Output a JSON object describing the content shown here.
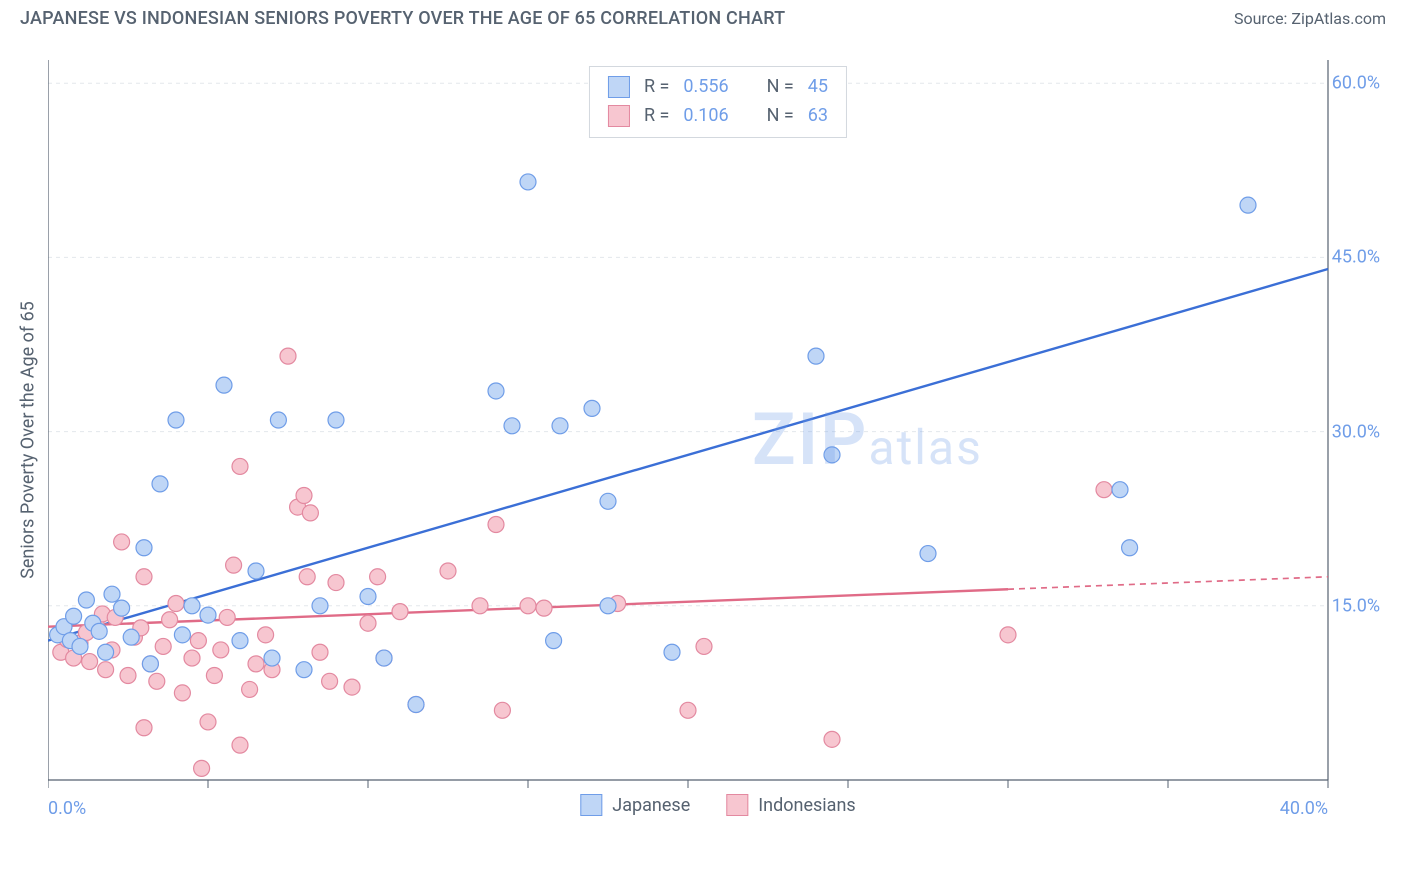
{
  "header": {
    "title": "JAPANESE VS INDONESIAN SENIORS POVERTY OVER THE AGE OF 65 CORRELATION CHART",
    "source_prefix": "Source: ",
    "source_name": "ZipAtlas.com"
  },
  "chart": {
    "type": "scatter",
    "ylabel": "Seniors Poverty Over the Age of 65",
    "background_color": "#ffffff",
    "grid_color": "#e3e7eb",
    "axis_color": "#566270",
    "text_color": "#566270",
    "tick_label_color": "#6f9de8",
    "watermark_text_a": "ZIP",
    "watermark_text_b": "atlas",
    "watermark_color": "#6f9de8",
    "xlim": [
      0,
      40
    ],
    "ylim": [
      0,
      62
    ],
    "xticks": [
      0,
      5,
      10,
      15,
      20,
      25,
      30,
      35,
      40
    ],
    "xtick_labels": {
      "0": "0.0%",
      "40": "40.0%"
    },
    "yticks": [
      15,
      30,
      45,
      60
    ],
    "ytick_labels": {
      "15": "15.0%",
      "30": "30.0%",
      "45": "45.0%",
      "60": "60.0%"
    },
    "marker_radius": 8,
    "marker_stroke_width": 1.2,
    "line_width": 2.4,
    "stats_box": {
      "rows": [
        {
          "swatch_fill": "#bfd6f6",
          "swatch_stroke": "#6f9de8",
          "r_label": "R =",
          "r_value": "0.556",
          "n_label": "N =",
          "n_value": "45"
        },
        {
          "swatch_fill": "#f7c6d0",
          "swatch_stroke": "#e389a0",
          "r_label": "R =",
          "r_value": "0.106",
          "n_label": "N =",
          "n_value": "63"
        }
      ]
    },
    "bottom_legend": [
      {
        "swatch_fill": "#bfd6f6",
        "swatch_stroke": "#6f9de8",
        "label": "Japanese"
      },
      {
        "swatch_fill": "#f7c6d0",
        "swatch_stroke": "#e389a0",
        "label": "Indonesians"
      }
    ],
    "series": [
      {
        "name": "Japanese",
        "marker_fill": "#bfd6f6",
        "marker_stroke": "#6f9de8",
        "line_color": "#3b6fd6",
        "trend": {
          "x1": 0,
          "y1": 12.0,
          "x2": 40,
          "y2": 44.0,
          "solid_until_x": 40
        },
        "points": [
          [
            0.3,
            12.5
          ],
          [
            0.5,
            13.2
          ],
          [
            0.7,
            12.0
          ],
          [
            0.8,
            14.1
          ],
          [
            1.0,
            11.5
          ],
          [
            1.2,
            15.5
          ],
          [
            1.4,
            13.5
          ],
          [
            1.6,
            12.8
          ],
          [
            1.8,
            11.0
          ],
          [
            2.0,
            16.0
          ],
          [
            2.3,
            14.8
          ],
          [
            2.6,
            12.3
          ],
          [
            3.0,
            20.0
          ],
          [
            3.2,
            10.0
          ],
          [
            3.5,
            25.5
          ],
          [
            4.0,
            31.0
          ],
          [
            4.5,
            15.0
          ],
          [
            5.0,
            14.2
          ],
          [
            5.5,
            34.0
          ],
          [
            6.0,
            12.0
          ],
          [
            6.5,
            18.0
          ],
          [
            7.0,
            10.5
          ],
          [
            7.2,
            31.0
          ],
          [
            8.0,
            9.5
          ],
          [
            8.5,
            15.0
          ],
          [
            9.0,
            31.0
          ],
          [
            10.0,
            15.8
          ],
          [
            10.5,
            10.5
          ],
          [
            11.5,
            6.5
          ],
          [
            14.0,
            33.5
          ],
          [
            14.5,
            30.5
          ],
          [
            15.0,
            51.5
          ],
          [
            15.8,
            12.0
          ],
          [
            16.0,
            30.5
          ],
          [
            17.0,
            32.0
          ],
          [
            17.5,
            24.0
          ],
          [
            19.5,
            11.0
          ],
          [
            24.0,
            36.5
          ],
          [
            24.5,
            28.0
          ],
          [
            27.5,
            19.5
          ],
          [
            33.5,
            25.0
          ],
          [
            33.8,
            20.0
          ],
          [
            37.5,
            49.5
          ],
          [
            17.5,
            15.0
          ],
          [
            4.2,
            12.5
          ]
        ]
      },
      {
        "name": "Indonesians",
        "marker_fill": "#f7c6d0",
        "marker_stroke": "#e389a0",
        "line_color": "#e06b87",
        "trend": {
          "x1": 0,
          "y1": 13.2,
          "x2": 40,
          "y2": 17.5,
          "solid_until_x": 30
        },
        "points": [
          [
            0.4,
            11.0
          ],
          [
            0.6,
            12.1
          ],
          [
            0.8,
            10.5
          ],
          [
            1.0,
            11.8
          ],
          [
            1.2,
            12.7
          ],
          [
            1.3,
            10.2
          ],
          [
            1.5,
            13.5
          ],
          [
            1.7,
            14.3
          ],
          [
            1.8,
            9.5
          ],
          [
            2.0,
            11.2
          ],
          [
            2.1,
            14.0
          ],
          [
            2.3,
            20.5
          ],
          [
            2.5,
            9.0
          ],
          [
            2.7,
            12.3
          ],
          [
            2.9,
            13.1
          ],
          [
            3.0,
            17.5
          ],
          [
            3.2,
            10.0
          ],
          [
            3.4,
            8.5
          ],
          [
            3.6,
            11.5
          ],
          [
            3.8,
            13.8
          ],
          [
            4.0,
            15.2
          ],
          [
            4.2,
            7.5
          ],
          [
            4.5,
            10.5
          ],
          [
            4.7,
            12.0
          ],
          [
            5.0,
            5.0
          ],
          [
            5.2,
            9.0
          ],
          [
            5.4,
            11.2
          ],
          [
            5.6,
            14.0
          ],
          [
            5.8,
            18.5
          ],
          [
            6.0,
            27.0
          ],
          [
            6.3,
            7.8
          ],
          [
            6.5,
            10.0
          ],
          [
            6.8,
            12.5
          ],
          [
            7.0,
            9.5
          ],
          [
            7.5,
            36.5
          ],
          [
            7.8,
            23.5
          ],
          [
            8.0,
            24.5
          ],
          [
            8.1,
            17.5
          ],
          [
            8.2,
            23.0
          ],
          [
            8.5,
            11.0
          ],
          [
            8.8,
            8.5
          ],
          [
            9.0,
            17.0
          ],
          [
            9.5,
            8.0
          ],
          [
            10.0,
            13.5
          ],
          [
            10.3,
            17.5
          ],
          [
            10.5,
            10.5
          ],
          [
            11.0,
            14.5
          ],
          [
            11.5,
            6.5
          ],
          [
            12.5,
            18.0
          ],
          [
            13.5,
            15.0
          ],
          [
            14.0,
            22.0
          ],
          [
            14.2,
            6.0
          ],
          [
            15.0,
            15.0
          ],
          [
            15.5,
            14.8
          ],
          [
            17.8,
            15.2
          ],
          [
            20.0,
            6.0
          ],
          [
            20.5,
            11.5
          ],
          [
            24.5,
            3.5
          ],
          [
            30.0,
            12.5
          ],
          [
            33.0,
            25.0
          ],
          [
            4.8,
            1.0
          ],
          [
            6.0,
            3.0
          ],
          [
            3.0,
            4.5
          ]
        ]
      }
    ]
  }
}
